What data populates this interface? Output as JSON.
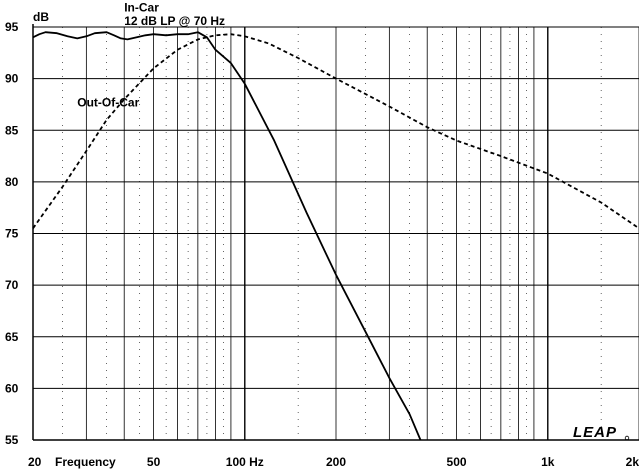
{
  "chart_data": {
    "type": "line",
    "x_scale": "log",
    "xlim": [
      20,
      2000
    ],
    "ylim": [
      55,
      95
    ],
    "grid": true,
    "ylabel": "dB",
    "xlabel": "Frequency",
    "x_tick_labels": [
      {
        "value": 20,
        "label": "20"
      },
      {
        "value": 50,
        "label": "50"
      },
      {
        "value": 100,
        "label": "100 Hz"
      },
      {
        "value": 200,
        "label": "200"
      },
      {
        "value": 500,
        "label": "500"
      },
      {
        "value": 1000,
        "label": "1k"
      },
      {
        "value": 2000,
        "label": "2k"
      }
    ],
    "y_ticks": [
      95,
      90,
      85,
      80,
      75,
      70,
      65,
      60,
      55
    ],
    "series": [
      {
        "name": "In-Car",
        "annotation": "12 dB LP @ 70 Hz",
        "style": "solid",
        "color": "#000000",
        "points": [
          [
            20,
            94.0
          ],
          [
            21,
            94.3
          ],
          [
            22,
            94.5
          ],
          [
            24,
            94.4
          ],
          [
            26,
            94.1
          ],
          [
            28,
            93.9
          ],
          [
            30,
            94.1
          ],
          [
            32,
            94.4
          ],
          [
            35,
            94.5
          ],
          [
            37,
            94.2
          ],
          [
            39,
            93.9
          ],
          [
            41,
            93.8
          ],
          [
            44,
            94.0
          ],
          [
            47,
            94.2
          ],
          [
            50,
            94.3
          ],
          [
            55,
            94.2
          ],
          [
            60,
            94.3
          ],
          [
            65,
            94.3
          ],
          [
            70,
            94.5
          ],
          [
            75,
            94.0
          ],
          [
            80,
            92.8
          ],
          [
            90,
            91.5
          ],
          [
            100,
            89.5
          ],
          [
            125,
            84.0
          ],
          [
            160,
            77.0
          ],
          [
            200,
            71.0
          ],
          [
            250,
            65.5
          ],
          [
            300,
            61.0
          ],
          [
            350,
            57.5
          ],
          [
            380,
            55.0
          ]
        ]
      },
      {
        "name": "Out-Of-Car",
        "style": "dashed",
        "color": "#000000",
        "points": [
          [
            20,
            75.5
          ],
          [
            25,
            79.5
          ],
          [
            30,
            83.0
          ],
          [
            35,
            86.0
          ],
          [
            40,
            88.0
          ],
          [
            50,
            91.0
          ],
          [
            60,
            92.8
          ],
          [
            70,
            93.8
          ],
          [
            80,
            94.2
          ],
          [
            90,
            94.3
          ],
          [
            100,
            94.1
          ],
          [
            120,
            93.4
          ],
          [
            150,
            92.0
          ],
          [
            200,
            90.0
          ],
          [
            300,
            87.3
          ],
          [
            400,
            85.3
          ],
          [
            500,
            84.0
          ],
          [
            700,
            82.5
          ],
          [
            1000,
            80.8
          ],
          [
            1500,
            78.0
          ],
          [
            2000,
            75.5
          ]
        ]
      }
    ],
    "annotations": [
      {
        "text": "In-Car",
        "x": 40,
        "y": 96.5
      },
      {
        "text": "12 dB LP @ 70 Hz",
        "x": 40,
        "y": 95.2
      },
      {
        "text": "Out-Of-Car",
        "x": 28,
        "y": 87.3
      }
    ]
  },
  "logo": {
    "text": "LEAP"
  }
}
